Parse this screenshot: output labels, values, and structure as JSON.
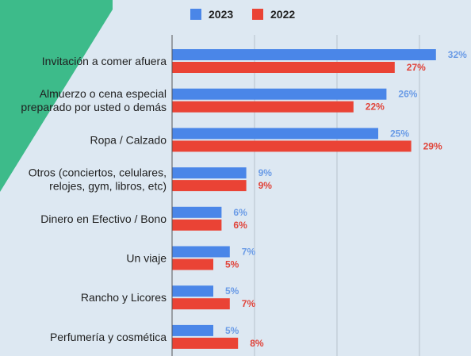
{
  "colors": {
    "background": "#dde8f2",
    "decoration": "#3dbb8a",
    "grid": "#b7c2cc",
    "axis": "#555555",
    "label_2023": "#6a9be6",
    "label_2022": "#e0443a"
  },
  "chart_data": {
    "type": "bar",
    "orientation": "horizontal",
    "categories": [
      [
        "Invitación a comer afuera"
      ],
      [
        "Almuerzo o cena especial",
        "preparado por usted o demás"
      ],
      [
        "Ropa / Calzado"
      ],
      [
        "Otros (conciertos, celulares,",
        "relojes, gym, libros, etc)"
      ],
      [
        "Dinero en Efectivo / Bono"
      ],
      [
        "Un viaje"
      ],
      [
        "Rancho y Licores"
      ],
      [
        "Perfumería y cosmética"
      ]
    ],
    "series": [
      {
        "name": "2023",
        "color": "#4a86e8",
        "values": [
          32,
          26,
          25,
          9,
          6,
          7,
          5,
          5
        ],
        "labels": [
          "32%",
          "26%",
          "25%",
          "9%",
          "6%",
          "7%",
          "5%",
          "5%"
        ]
      },
      {
        "name": "2022",
        "color": "#ea4335",
        "values": [
          27,
          22,
          29,
          9,
          6,
          5,
          7,
          8
        ],
        "labels": [
          "27%",
          "22%",
          "29%",
          "9%",
          "6%",
          "5%",
          "7%",
          "8%"
        ]
      }
    ],
    "xlim": [
      0,
      35
    ],
    "grid": true,
    "legend_position": "top-center"
  }
}
